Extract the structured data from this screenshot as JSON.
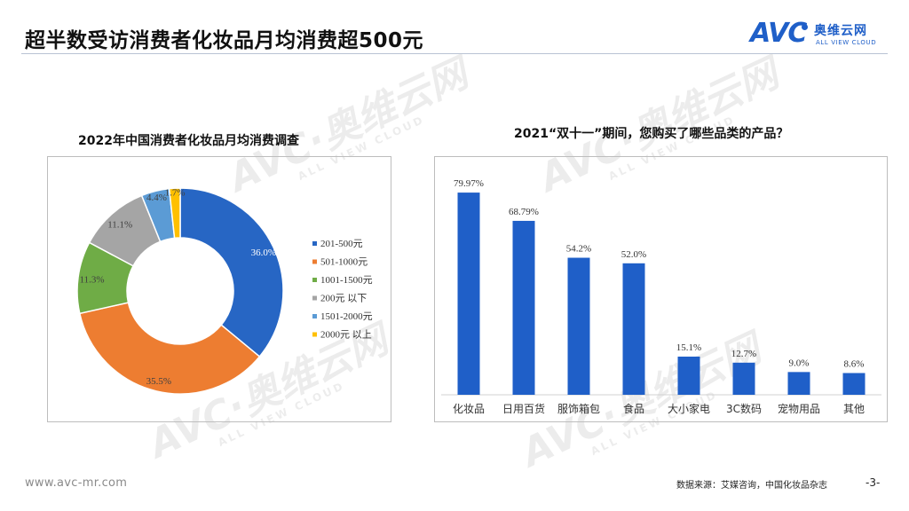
{
  "header": {
    "title": "超半数受访消费者化妆品月均消费超500元",
    "logo": {
      "brand": "AVC",
      "cn": "奥维云网",
      "en": "ALL VIEW CLOUD"
    }
  },
  "colors": {
    "blue": "#1f5fc8",
    "donut": [
      "#2766c4",
      "#ed7d31",
      "#6fac46",
      "#a5a5a5",
      "#5b9bd5",
      "#ffc000"
    ]
  },
  "watermark": {
    "main": "AVC·奥维云网",
    "sub": "ALL VIEW CLOUD"
  },
  "chart_data": [
    {
      "type": "pie",
      "title": "2022年中国消费者化妆品月均消费调查",
      "categories": [
        "201-500元",
        "501-1000元",
        "1001-1500元",
        "200元以下",
        "1501-2000元",
        "2000元以上"
      ],
      "legend_labels": [
        "201-500元",
        "501-1000元",
        "1001-1500元",
        "200元 以下",
        "1501-2000元",
        "2000元 以上"
      ],
      "values": [
        36.0,
        35.5,
        11.3,
        11.1,
        4.4,
        1.7
      ],
      "labels": [
        "36.0%",
        "35.5%",
        "11.3%",
        "11.1%",
        "4.4%",
        "1.7%"
      ],
      "legend_position": "right"
    },
    {
      "type": "bar",
      "title": "2021“双十一”期间，您购买了哪些品类的产品？",
      "categories": [
        "化妆品",
        "日用百货",
        "服饰箱包",
        "食品",
        "大小家电",
        "3C数码",
        "宠物用品",
        "其他"
      ],
      "values": [
        79.97,
        68.79,
        54.2,
        52.0,
        15.1,
        12.7,
        9.0,
        8.6
      ],
      "labels": [
        "79.97%",
        "68.79%",
        "54.2%",
        "52.0%",
        "15.1%",
        "12.7%",
        "9.0%",
        "8.6%"
      ],
      "ylim": [
        0,
        100
      ]
    }
  ],
  "footer": {
    "url": "www.avc-mr.com",
    "source": "数据来源：艾媒咨询，中国化妆品杂志",
    "page": "-3-"
  }
}
